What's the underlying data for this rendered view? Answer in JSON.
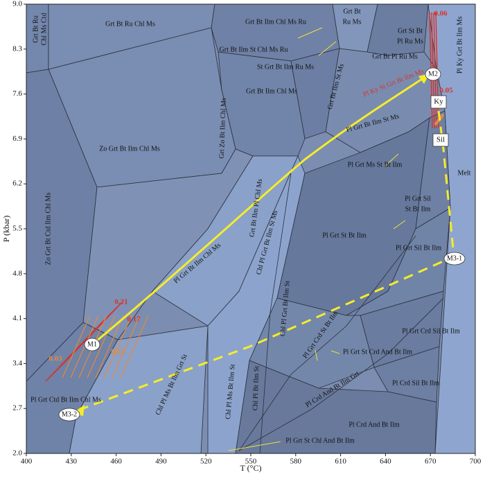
{
  "chart_data": {
    "type": "phase-diagram",
    "x_label": "T (°C)",
    "y_label": "P (kbar)",
    "xlim": [
      400,
      700
    ],
    "xticks": [
      400,
      430,
      460,
      490,
      520,
      550,
      580,
      610,
      640,
      670,
      700
    ],
    "ylim": [
      2,
      9
    ],
    "yticks": [
      {
        "value": 2,
        "label": "2.0"
      },
      2.7,
      3.4,
      4.1,
      4.8,
      5.5,
      6.2,
      6.9,
      7.6,
      8.3,
      {
        "value": 9,
        "label": "9.0"
      }
    ],
    "fields": [
      "Grt Bt Ru",
      "Chl Ms Ctd",
      "Grt Bt Ru Chl Ms",
      "Grt Bt Ilm Chl Ms Ru",
      "Grt Bt",
      "Ru Ms",
      "Grt St Bt",
      "Pl Ru Ms",
      "Grt Bt Ilm St Chl Ms Ru",
      "St Grt Bt Ilm Ru Ms",
      "Grt Bt Pl Ru Ms",
      "Pl Ky Grt Bt Ilm Ms",
      "Pl Ky St Grt Bt Ilm Ms",
      "Grt Bt Ilm St Ms",
      "Grt Bt Ilm Chl Ms",
      "Pl Grt Bt Ilm St Ms",
      "Grt Zo Bt Ilm Chl Ms",
      "Zo Grt Bt Ilm Chl Ms",
      "Melt",
      "Pl Grt Ms St Bt Ilm",
      "Zo Grt Bt Ctd Ilm Chl Ms",
      "Grt Bt Ilm Pl Chl Ms",
      "Chl Pl Grt Bt Ilm St Ms",
      "Pl Grt Sil",
      "St Bt Ilm",
      "Pl Grt St Bt Ilm",
      "Pl Grt Sil Bt Ilm",
      "Pl Grt Bt Ilm Chl Ms",
      "Chl Pl Grt Bt Ilm St",
      "Pl Grt Crd St Bt Ilm",
      "Pl Grt Crd Sil Bt Ilm",
      "Pl Grt St Crd And Bt Ilm",
      "Chl Pl Ms Bt Ilm Grt St",
      "Chl Pl Ms Bt Ilm St",
      "Chl Pl Bt Ilm St",
      "Pl Grt Ctd Bt Ilm Chl Ms",
      "Pl Crd And Bt Ilm Grt",
      "Pl Crd Sil Bt Ilm",
      "Pl Grt St Chl And Bt Ilm",
      "Pl Crd And Bt Ilm"
    ],
    "points": [
      "M1",
      "M2",
      "M3-1",
      "M3-2"
    ],
    "minerals": [
      "Ky",
      "Sil"
    ],
    "isopleths": {
      "values": [
        0.21,
        0.17,
        0.03,
        0.04,
        0.06,
        0.05
      ]
    }
  }
}
